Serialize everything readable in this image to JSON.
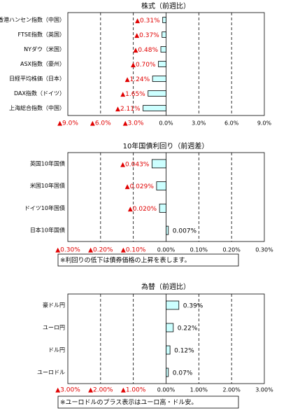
{
  "chart_data": [
    {
      "type": "barh",
      "title": "株式（前週比）",
      "color": "#ccffff",
      "grid": true,
      "categories": [
        "香港ハンセン指数（中国）",
        "FTSE指数（英国）",
        "NYダウ（米国）",
        "ASX指数（豪州）",
        "日経平均株価（日本）",
        "DAX指数（ドイツ）",
        "上海総合指数（中国）"
      ],
      "values": [
        -0.31,
        -0.37,
        -0.48,
        -0.7,
        -1.24,
        -1.65,
        -2.11
      ],
      "value_labels": [
        "▲0.31%",
        "▲0.37%",
        "▲0.48%",
        "▲0.70%",
        "▲1.24%",
        "▲1.65%",
        "▲2.11%"
      ],
      "xlim": [
        -9,
        9
      ],
      "xticks": [
        {
          "value": -9,
          "label": "▲9.0%"
        },
        {
          "value": -6,
          "label": "▲6.0%"
        },
        {
          "value": -3,
          "label": "▲3.0%"
        },
        {
          "value": 0,
          "label": "0.0%"
        },
        {
          "value": 3,
          "label": "3.0%"
        },
        {
          "value": 6,
          "label": "6.0%"
        },
        {
          "value": 9,
          "label": "9.0%"
        }
      ]
    },
    {
      "type": "barh",
      "title": "10年国債利回り（前週差）",
      "color": "#ccffff",
      "grid": true,
      "categories": [
        "英国10年国債",
        "米国10年国債",
        "ドイツ10年国債",
        "日本10年国債"
      ],
      "values": [
        -0.043,
        -0.029,
        -0.02,
        0.007
      ],
      "value_labels": [
        "▲0.043%",
        "▲0.029%",
        "▲0.020%",
        "0.007%"
      ],
      "xlim": [
        -0.3,
        0.3
      ],
      "xticks": [
        {
          "value": -0.3,
          "label": "▲0.30%"
        },
        {
          "value": -0.2,
          "label": "▲0.20%"
        },
        {
          "value": -0.1,
          "label": "▲0.10%"
        },
        {
          "value": 0,
          "label": "0.00%"
        },
        {
          "value": 0.1,
          "label": "0.10%"
        },
        {
          "value": 0.2,
          "label": "0.20%"
        },
        {
          "value": 0.3,
          "label": "0.30%"
        }
      ],
      "note": "※利回りの低下は債券価格の上昇を表します。"
    },
    {
      "type": "barh",
      "title": "為替（前週比）",
      "color": "#ccffff",
      "grid": true,
      "categories": [
        "豪ドル円",
        "ユーロ円",
        "ドル円",
        "ユーロドル"
      ],
      "values": [
        0.39,
        0.22,
        0.12,
        0.07
      ],
      "value_labels": [
        "0.39%",
        "0.22%",
        "0.12%",
        "0.07%"
      ],
      "xlim": [
        -3,
        3
      ],
      "xticks": [
        {
          "value": -3,
          "label": "▲3.00%"
        },
        {
          "value": -2,
          "label": "▲2.00%"
        },
        {
          "value": -1,
          "label": "▲1.00%"
        },
        {
          "value": 0,
          "label": "0.00%"
        },
        {
          "value": 1,
          "label": "1.00%"
        },
        {
          "value": 2,
          "label": "2.00%"
        },
        {
          "value": 3,
          "label": "3.00%"
        }
      ],
      "note": "※ユーロドルのプラス表示はユーロ高・ドル安。"
    }
  ]
}
